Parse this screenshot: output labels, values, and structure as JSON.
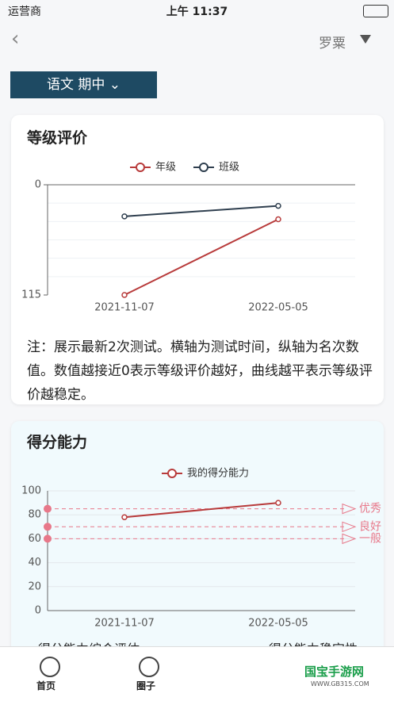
{
  "status_bar": {
    "carrier": "运营商",
    "time": "上午 11:37"
  },
  "header": {
    "user": "罗粟"
  },
  "filter": {
    "label": "语文 期中"
  },
  "chart_data": [
    {
      "type": "line",
      "title": "等级评价",
      "categories": [
        "2021-11-07",
        "2022-05-05"
      ],
      "series": [
        {
          "name": "年级",
          "color": "#b83b3b",
          "values": [
            115,
            36
          ]
        },
        {
          "name": "班级",
          "color": "#2f3f4f",
          "values": [
            33,
            22
          ]
        }
      ],
      "ylim": [
        0,
        115
      ],
      "yticks": [
        0,
        115
      ],
      "y_inverted": true,
      "note": "注：展示最新2次测试。横轴为测试时间，纵轴为名次数值。数值越接近0表示等级评价越好，曲线越平表示等级评价越稳定。"
    },
    {
      "type": "line",
      "title": "得分能力",
      "categories": [
        "2021-11-07",
        "2022-05-05"
      ],
      "series": [
        {
          "name": "我的得分能力",
          "color": "#b83b3b",
          "values": [
            78,
            90
          ]
        }
      ],
      "ylim": [
        0,
        100
      ],
      "yticks": [
        0,
        20,
        40,
        60,
        80,
        100
      ],
      "grid": true,
      "reference_lines": [
        {
          "label": "优秀",
          "value": 85
        },
        {
          "label": "良好",
          "value": 70
        },
        {
          "label": "一般",
          "value": 60
        }
      ],
      "reference_color": "#e8788a",
      "sections": [
        "得分能力综合评估",
        "得分能力稳定性"
      ]
    }
  ],
  "tab_bar": {
    "tabs": [
      "首页",
      "圈子"
    ]
  },
  "watermark": {
    "name": "国宝手游网",
    "url": "WWW.GB315.COM"
  }
}
